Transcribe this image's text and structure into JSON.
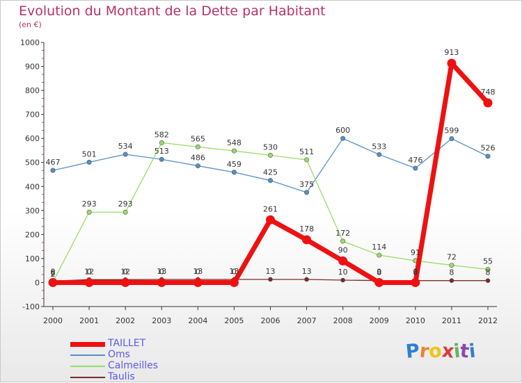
{
  "chart_data": {
    "type": "line",
    "title": "Evolution du Montant de la Dette par Habitant",
    "subtitle": "(en €)",
    "xlabel": "",
    "ylabel": "",
    "x": [
      "2000",
      "2001",
      "2002",
      "2003",
      "2004",
      "2005",
      "2006",
      "2007",
      "2008",
      "2009",
      "2010",
      "2011",
      "2012"
    ],
    "ylim": [
      -100,
      1000
    ],
    "yticks": [
      -100,
      0,
      100,
      200,
      300,
      400,
      500,
      600,
      700,
      800,
      900,
      1000
    ],
    "ytick_labels": [
      "-100",
      "0",
      "100",
      "200",
      "300",
      "400",
      "500",
      "600",
      "700",
      "800",
      "900",
      "1000"
    ],
    "legend_position": "bottom-left",
    "grid": false,
    "series": [
      {
        "name": "TAILLET",
        "color": "#ee1111",
        "values": [
          0,
          0,
          0,
          0,
          0,
          0,
          261,
          178,
          90,
          0,
          0,
          913,
          748
        ],
        "labels": [
          "0",
          "0",
          "0",
          "0",
          "0",
          "0",
          "261",
          "178",
          "90",
          "0",
          "0",
          "913",
          "748"
        ]
      },
      {
        "name": "Oms",
        "color": "#5590c8",
        "values": [
          467,
          501,
          534,
          513,
          486,
          459,
          425,
          375,
          600,
          533,
          476,
          599,
          526
        ],
        "labels": [
          "467",
          "501",
          "534",
          "513",
          "486",
          "459",
          "425",
          "375",
          "600",
          "533",
          "476",
          "599",
          "526"
        ]
      },
      {
        "name": "Calmeilles",
        "color": "#99dd66",
        "values": [
          2,
          293,
          293,
          582,
          565,
          548,
          530,
          511,
          172,
          114,
          91,
          72,
          55
        ],
        "labels": [
          "2",
          "293",
          "293",
          "582",
          "565",
          "548",
          "530",
          "511",
          "172",
          "114",
          "91",
          "72",
          "55"
        ]
      },
      {
        "name": "Taulis",
        "color": "#7a2a2a",
        "values": [
          6,
          12,
          12,
          13,
          13,
          13,
          13,
          13,
          10,
          8,
          8,
          8,
          8
        ],
        "labels": [
          "6",
          "12",
          "12",
          "13",
          "13",
          "13",
          "13",
          "13",
          "10",
          "8",
          "8",
          "8",
          "8"
        ]
      }
    ]
  },
  "brand": {
    "letters": [
      "P",
      "r",
      "o",
      "x",
      "i",
      "t",
      "i"
    ],
    "colors": [
      "#2f7fd1",
      "#e8862a",
      "#f0c419",
      "#d93a3a",
      "#5cb85c",
      "#8e44ad",
      "#2f7fd1"
    ]
  }
}
